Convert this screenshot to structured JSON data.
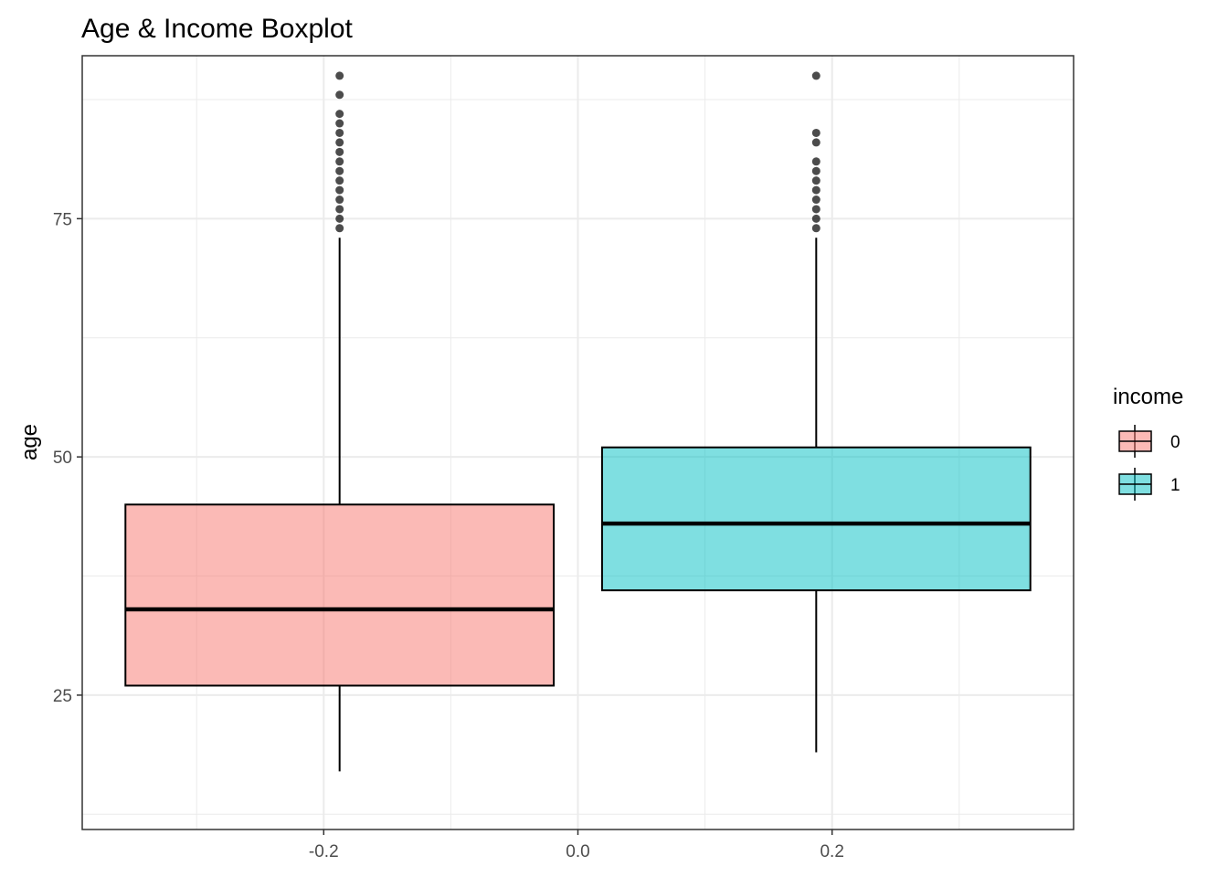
{
  "chart_data": {
    "type": "boxplot",
    "title": "Age & Income Boxplot",
    "xlabel": "",
    "ylabel": "age",
    "xlim": [
      -0.39,
      0.39
    ],
    "ylim": [
      10.9,
      92.1
    ],
    "x_ticks": [
      -0.2,
      0.0,
      0.2
    ],
    "x_tick_labels": [
      "-0.2",
      "0.0",
      "0.2"
    ],
    "y_ticks": [
      25,
      50,
      75
    ],
    "y_tick_labels": [
      "25",
      "50",
      "75"
    ],
    "grid": true,
    "legend": {
      "title": "income",
      "position": "right",
      "entries": [
        {
          "label": "0",
          "color": "#F8766D"
        },
        {
          "label": "1",
          "color": "#00BFC4"
        }
      ]
    },
    "series": [
      {
        "name": "0",
        "color": "#F8766D",
        "center": -0.1875,
        "xmin": -0.356,
        "xmax": -0.019,
        "whisker_low": 17,
        "q1": 26,
        "median": 34,
        "q3": 45,
        "whisker_high": 73,
        "outliers": [
          74,
          75,
          76,
          77,
          78,
          79,
          80,
          81,
          82,
          83,
          84,
          85,
          86,
          88,
          90
        ]
      },
      {
        "name": "1",
        "color": "#00BFC4",
        "center": 0.1875,
        "xmin": 0.019,
        "xmax": 0.356,
        "whisker_low": 19,
        "q1": 36,
        "median": 43,
        "q3": 51,
        "whisker_high": 73,
        "outliers": [
          74,
          75,
          76,
          77,
          78,
          79,
          80,
          81,
          83,
          84,
          90
        ]
      }
    ]
  }
}
